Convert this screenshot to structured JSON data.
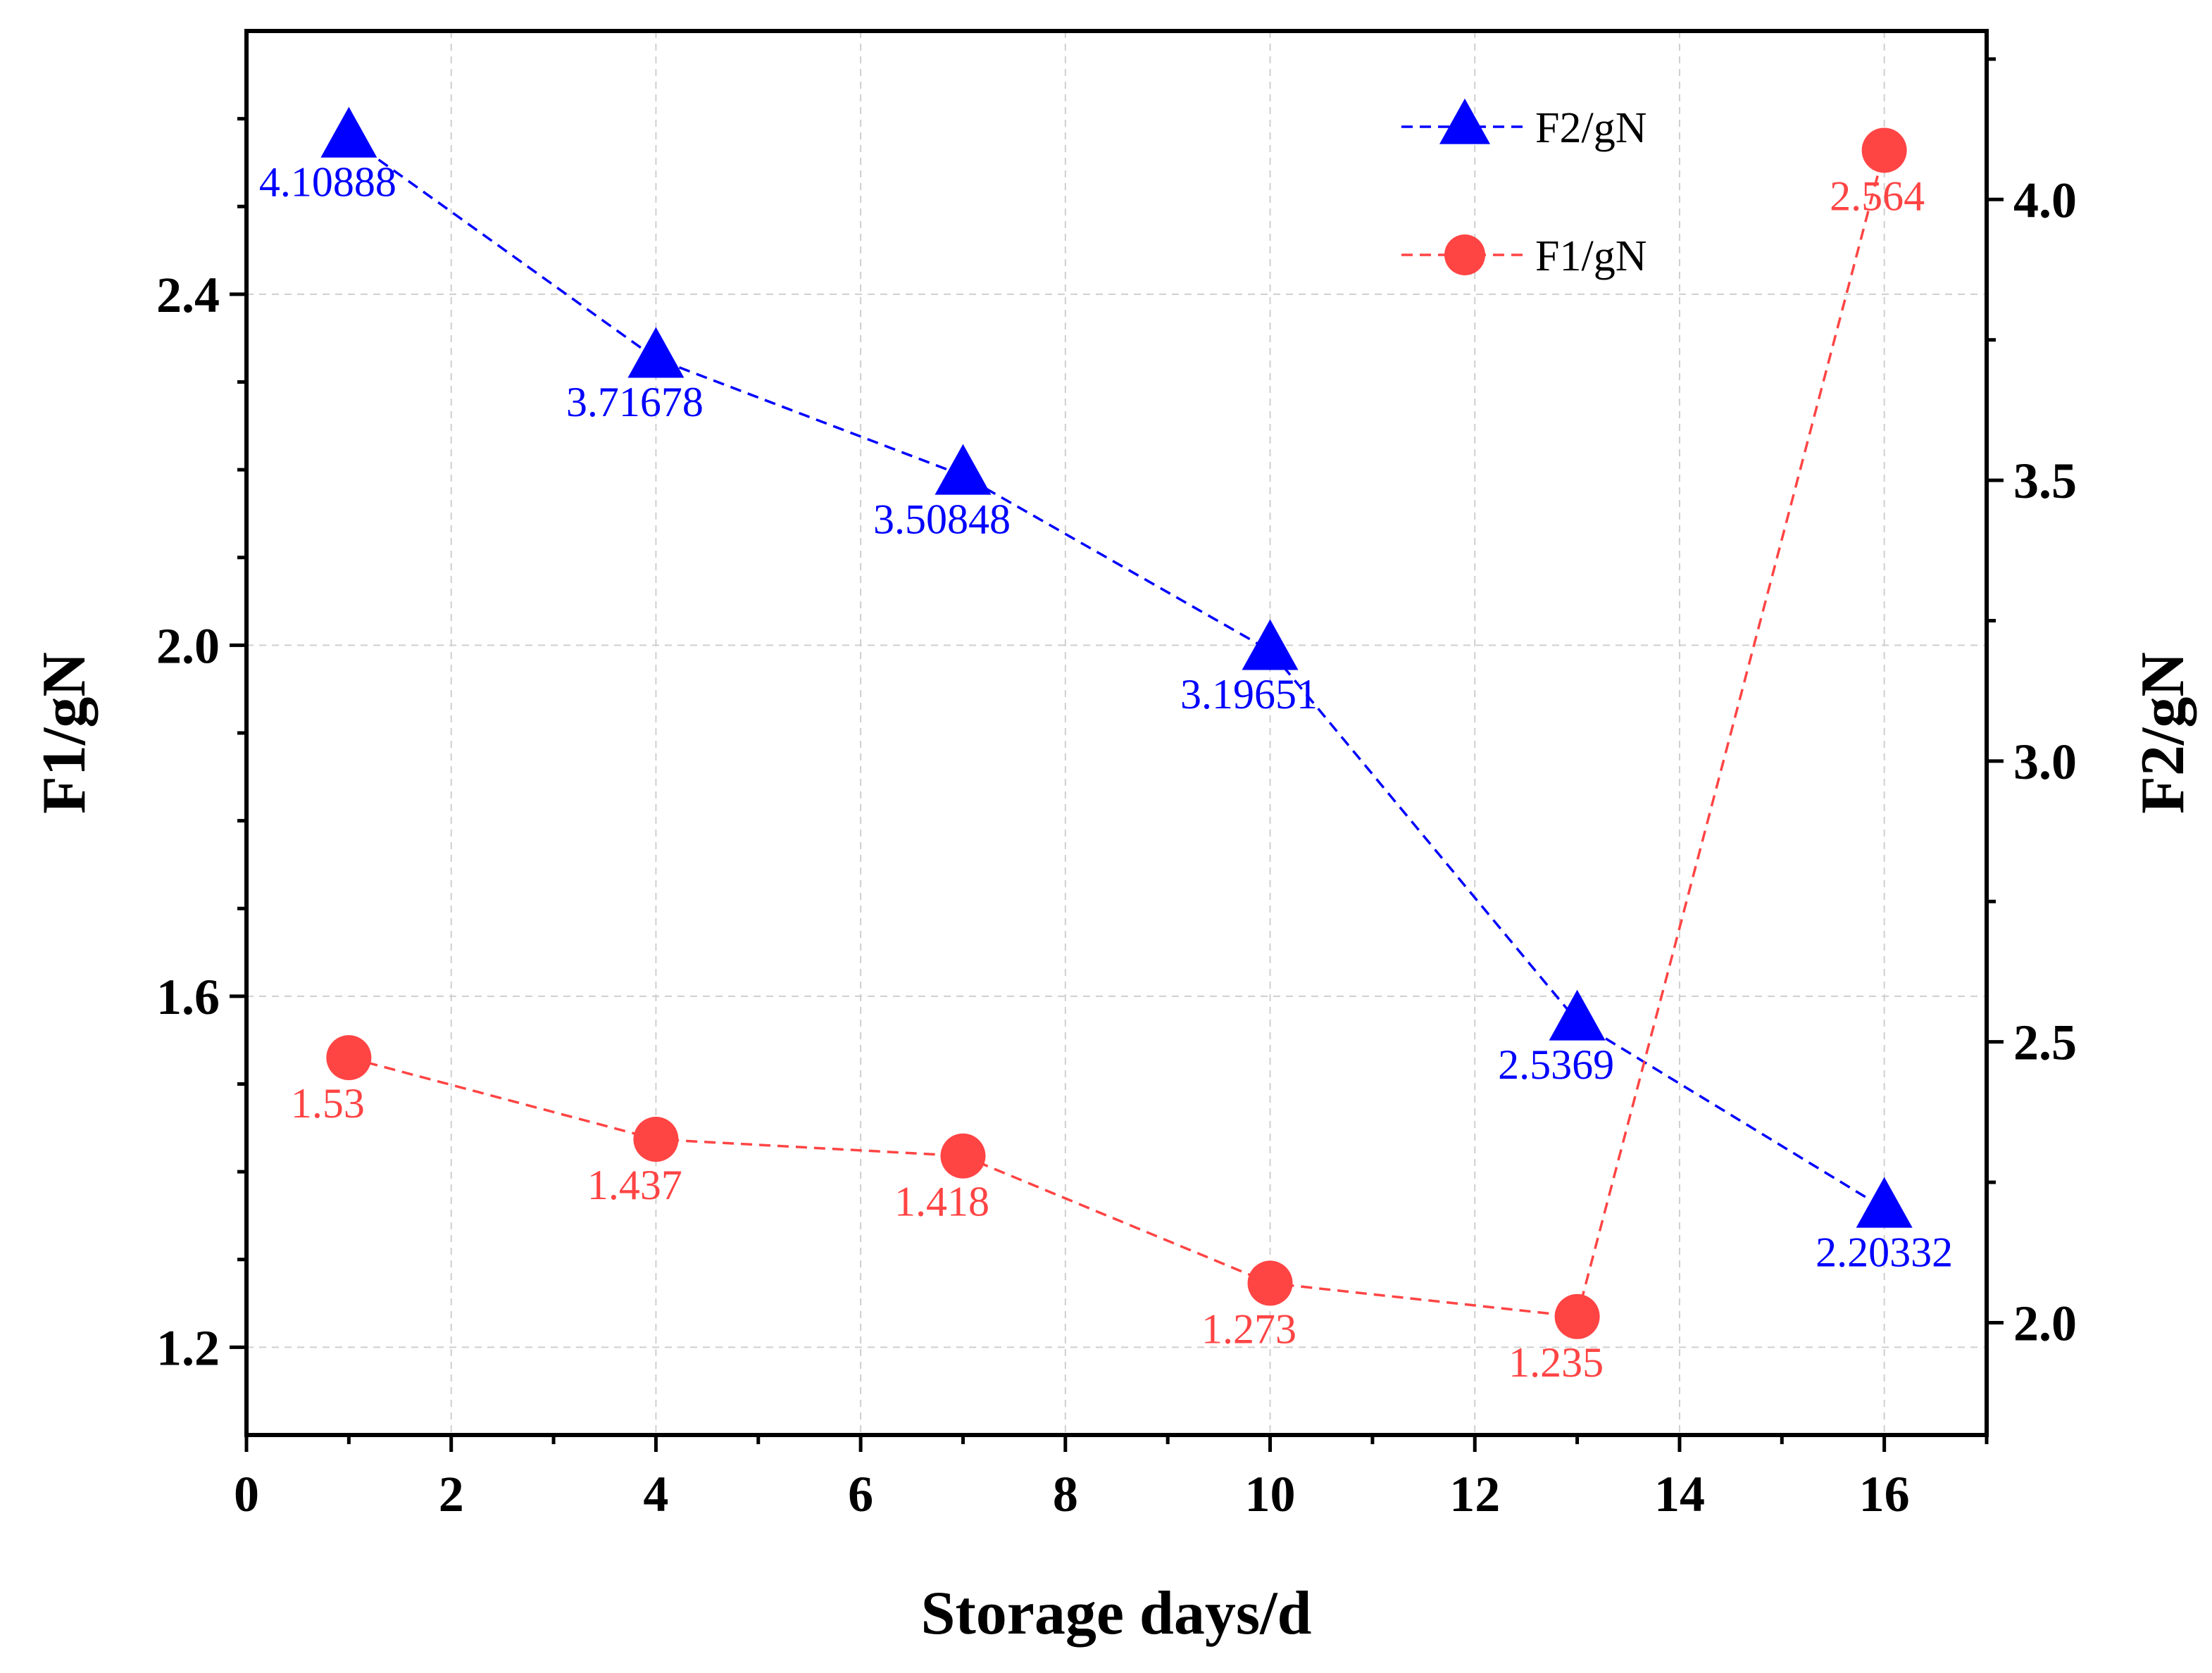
{
  "chart_data": {
    "type": "line",
    "xlabel": "Storage days/d",
    "ylabel_left": "F1/gN",
    "ylabel_right": "F2/gN",
    "xlim": [
      0,
      17
    ],
    "ylim_left": [
      1.1,
      2.7
    ],
    "ylim_right": [
      1.8,
      4.3
    ],
    "x_ticks": [
      0,
      2,
      4,
      6,
      8,
      10,
      12,
      14,
      16
    ],
    "y_left_ticks": [
      1.2,
      1.6,
      2.0,
      2.4
    ],
    "y_left_tick_labels": [
      "1.2",
      "1.6",
      "2.0",
      "2.4"
    ],
    "y_right_ticks": [
      2.0,
      2.5,
      3.0,
      3.5,
      4.0
    ],
    "y_right_tick_labels": [
      "2.0",
      "2.5",
      "3.0",
      "3.5",
      "4.0"
    ],
    "grid": true,
    "legend_position": "top-right",
    "series": [
      {
        "name": "F2/gN",
        "axis": "right",
        "marker": "triangle",
        "color": "#0000ff",
        "x": [
          1,
          4,
          7,
          10,
          13,
          16
        ],
        "values": [
          4.10888,
          3.71678,
          3.50848,
          3.19651,
          2.5369,
          2.20332
        ],
        "labels": [
          "4.10888",
          "3.71678",
          "3.50848",
          "3.19651",
          "2.5369",
          "2.20332"
        ]
      },
      {
        "name": "F1/gN",
        "axis": "left",
        "marker": "circle",
        "color": "#ff4444",
        "x": [
          1,
          4,
          7,
          10,
          13,
          16
        ],
        "values": [
          1.53,
          1.437,
          1.418,
          1.273,
          1.235,
          2.564
        ],
        "labels": [
          "1.53",
          "1.437",
          "1.418",
          "1.273",
          "1.235",
          "2.564"
        ]
      }
    ]
  }
}
